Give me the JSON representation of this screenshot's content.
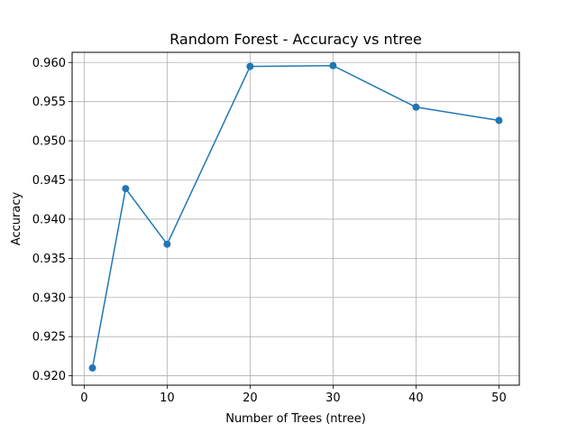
{
  "chart_data": {
    "type": "line",
    "title": "Random Forest - Accuracy vs ntree",
    "xlabel": "Number of Trees (ntree)",
    "ylabel": "Accuracy",
    "xlim": [
      -1.45,
      52.45
    ],
    "ylim": [
      0.9188,
      0.9613
    ],
    "x_ticks": [
      0,
      10,
      20,
      30,
      40,
      50
    ],
    "y_ticks": [
      0.92,
      0.925,
      0.93,
      0.935,
      0.94,
      0.945,
      0.95,
      0.955,
      0.96
    ],
    "x_tick_labels": [
      "0",
      "10",
      "20",
      "30",
      "40",
      "50"
    ],
    "y_tick_labels": [
      "0.920",
      "0.925",
      "0.930",
      "0.935",
      "0.940",
      "0.945",
      "0.950",
      "0.955",
      "0.960"
    ],
    "grid": true,
    "marker": "circle",
    "color": "#1f77b4",
    "series": [
      {
        "x": [
          1,
          5,
          10,
          20,
          30,
          40,
          50
        ],
        "values": [
          0.921,
          0.9439,
          0.9368,
          0.9595,
          0.9596,
          0.9543,
          0.9526
        ]
      }
    ]
  }
}
